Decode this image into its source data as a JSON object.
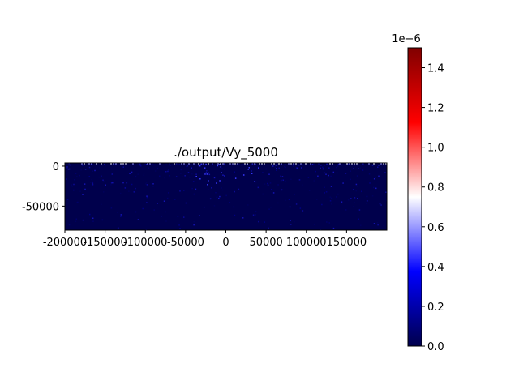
{
  "chart_data": {
    "type": "heatmap",
    "title": "./output/Vy_5000",
    "xlabel": "",
    "ylabel": "",
    "x_ticks": [
      "-200000",
      "-150000",
      "-100000",
      "-50000",
      "0",
      "50000",
      "100000",
      "150000"
    ],
    "x_tick_values": [
      -200000,
      -150000,
      -100000,
      -50000,
      0,
      50000,
      100000,
      150000
    ],
    "y_ticks": [
      "0",
      "-50000"
    ],
    "y_tick_values": [
      0,
      -50000
    ],
    "xlim": [
      -200000,
      200000
    ],
    "ylim": [
      -80000,
      4000
    ],
    "grid": false,
    "colormap": "seismic",
    "colorbar": {
      "offset_label": "1e−6",
      "ticks": [
        "0.0",
        "0.2",
        "0.4",
        "0.6",
        "0.8",
        "1.0",
        "1.2",
        "1.4"
      ],
      "tick_values": [
        0.0,
        0.2,
        0.4,
        0.6,
        0.8,
        1.0,
        1.2,
        1.4
      ],
      "range": [
        0.0,
        1.5
      ]
    },
    "field_summary": "values near 0 across most of the domain, with slightly elevated speckles near the top surface, peak near x = 0"
  },
  "colors": {
    "low": "#00004c",
    "mid": "#ffffff",
    "high": "#800000",
    "background": "#ffffff"
  }
}
